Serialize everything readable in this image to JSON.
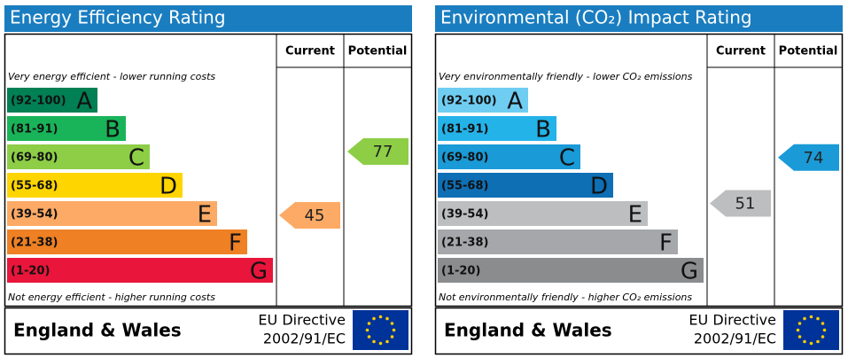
{
  "panels": [
    {
      "title": "Energy Efficiency Rating",
      "header_current": "Current",
      "header_potential": "Potential",
      "top_note": "Very energy efficient - lower running costs",
      "bottom_note": "Not energy efficient - higher running costs",
      "bands": [
        {
          "range": "(92-100)",
          "letter": "A",
          "color": "#008054"
        },
        {
          "range": "(81-91)",
          "letter": "B",
          "color": "#19b459"
        },
        {
          "range": "(69-80)",
          "letter": "C",
          "color": "#8dce46"
        },
        {
          "range": "(55-68)",
          "letter": "D",
          "color": "#ffd500"
        },
        {
          "range": "(39-54)",
          "letter": "E",
          "color": "#fcaa65"
        },
        {
          "range": "(21-38)",
          "letter": "F",
          "color": "#ef8023"
        },
        {
          "range": "(1-20)",
          "letter": "G",
          "color": "#e9153b"
        }
      ],
      "current": 45,
      "potential": 77,
      "region": "England & Wales",
      "directive_line1": "EU Directive",
      "directive_line2": "2002/91/EC"
    },
    {
      "title": "Environmental (CO₂) Impact Rating",
      "header_current": "Current",
      "header_potential": "Potential",
      "top_note": "Very environmentally friendly - lower CO₂ emissions",
      "bottom_note": "Not environmentally friendly - higher CO₂ emissions",
      "bands": [
        {
          "range": "(92-100)",
          "letter": "A",
          "color": "#6fcdf2"
        },
        {
          "range": "(81-91)",
          "letter": "B",
          "color": "#24b3e8"
        },
        {
          "range": "(69-80)",
          "letter": "C",
          "color": "#1a9ad6"
        },
        {
          "range": "(55-68)",
          "letter": "D",
          "color": "#0e6fb5"
        },
        {
          "range": "(39-54)",
          "letter": "E",
          "color": "#bcbec0"
        },
        {
          "range": "(21-38)",
          "letter": "F",
          "color": "#a5a7aa"
        },
        {
          "range": "(1-20)",
          "letter": "G",
          "color": "#8b8c8e"
        }
      ],
      "current": 51,
      "potential": 74,
      "region": "England & Wales",
      "directive_line1": "EU Directive",
      "directive_line2": "2002/91/EC"
    }
  ]
}
